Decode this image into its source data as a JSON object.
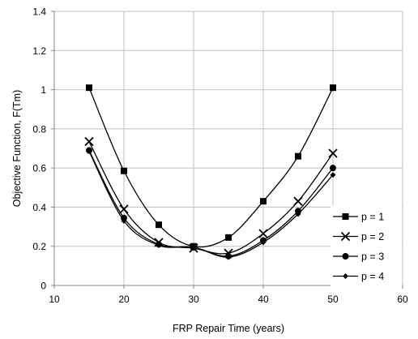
{
  "chart_data": {
    "type": "line",
    "xlabel": "FRP Repair Time (years)",
    "ylabel": "Objective Function, F(Tm)",
    "xlim": [
      10,
      60
    ],
    "ylim": [
      0,
      1.4
    ],
    "x_ticks": [
      "10",
      "20",
      "30",
      "40",
      "50",
      "60"
    ],
    "y_ticks": [
      "0",
      "0.2",
      "0.4",
      "0.6",
      "0.8",
      "1",
      "1.2",
      "1.4"
    ],
    "grid": true,
    "legend_position": "right, lower-middle",
    "x": [
      15,
      20,
      25,
      30,
      35,
      40,
      45,
      50
    ],
    "series": [
      {
        "name": "p = 1",
        "marker": "square",
        "values": [
          1.01,
          0.585,
          0.31,
          0.2,
          0.245,
          0.43,
          0.66,
          1.01
        ]
      },
      {
        "name": "p = 2",
        "marker": "cross",
        "values": [
          0.735,
          0.39,
          0.22,
          0.19,
          0.165,
          0.265,
          0.43,
          0.675
        ]
      },
      {
        "name": "p = 3",
        "marker": "circle",
        "values": [
          0.69,
          0.345,
          0.21,
          0.195,
          0.15,
          0.23,
          0.38,
          0.6
        ]
      },
      {
        "name": "p = 4",
        "marker": "diamond",
        "values": [
          0.685,
          0.33,
          0.205,
          0.195,
          0.145,
          0.22,
          0.365,
          0.565
        ]
      }
    ]
  }
}
